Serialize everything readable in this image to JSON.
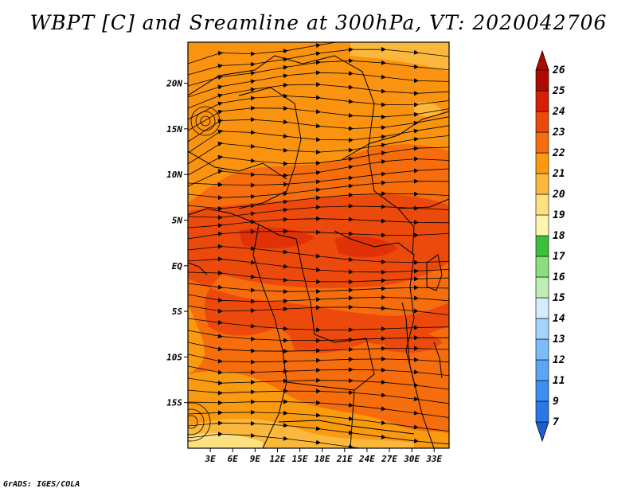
{
  "title": "WBPT [C] and Sreamline at 300hPa, VT: 2020042706",
  "footer": "GrADS: IGES/COLA",
  "map": {
    "lon_range": [
      0,
      35
    ],
    "lat_range": [
      -20,
      24.5
    ],
    "lat_ticks": [
      {
        "value": 20,
        "label": "20N"
      },
      {
        "value": 15,
        "label": "15N"
      },
      {
        "value": 10,
        "label": "10N"
      },
      {
        "value": 5,
        "label": "5N"
      },
      {
        "value": 0,
        "label": "EQ"
      },
      {
        "value": -5,
        "label": "5S"
      },
      {
        "value": -10,
        "label": "10S"
      },
      {
        "value": -15,
        "label": "15S"
      }
    ],
    "lon_ticks": [
      {
        "value": 3,
        "label": "3E"
      },
      {
        "value": 6,
        "label": "6E"
      },
      {
        "value": 9,
        "label": "9E"
      },
      {
        "value": 12,
        "label": "12E"
      },
      {
        "value": 15,
        "label": "15E"
      },
      {
        "value": 18,
        "label": "18E"
      },
      {
        "value": 21,
        "label": "21E"
      },
      {
        "value": 24,
        "label": "24E"
      },
      {
        "value": 27,
        "label": "27E"
      },
      {
        "value": 30,
        "label": "30E"
      },
      {
        "value": 33,
        "label": "33E"
      }
    ]
  },
  "colorbar": {
    "levels": [
      {
        "label": "7",
        "color": "#1e5fd8"
      },
      {
        "label": "9",
        "color": "#2a78e6"
      },
      {
        "label": "11",
        "color": "#3c8ff0"
      },
      {
        "label": "12",
        "color": "#5aa7f5"
      },
      {
        "label": "13",
        "color": "#7cbcf8"
      },
      {
        "label": "14",
        "color": "#a4d3fb"
      },
      {
        "label": "15",
        "color": "#d4ecfd"
      },
      {
        "label": "16",
        "color": "#bfeeb5"
      },
      {
        "label": "17",
        "color": "#8ade7c"
      },
      {
        "label": "18",
        "color": "#3cbf3a"
      },
      {
        "label": "19",
        "color": "#fff5ae"
      },
      {
        "label": "20",
        "color": "#fde181"
      },
      {
        "label": "21",
        "color": "#fbb83c"
      },
      {
        "label": "22",
        "color": "#fa9a10"
      },
      {
        "label": "23",
        "color": "#f56d0c"
      },
      {
        "label": "24",
        "color": "#ec4a0c"
      },
      {
        "label": "25",
        "color": "#d81e06"
      },
      {
        "label": "26",
        "color": "#ad0a03"
      }
    ],
    "top_cap_color": "#ad0a03",
    "bottom_cap_color": "#1e5fd8"
  }
}
